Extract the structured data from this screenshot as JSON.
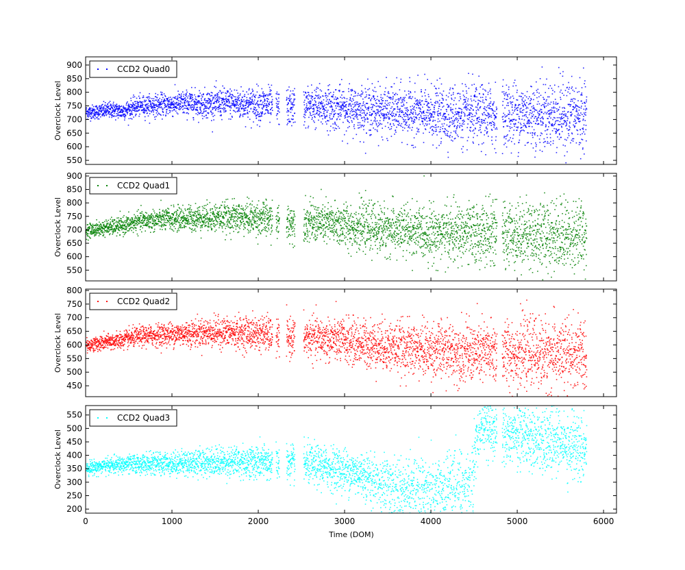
{
  "chart_data": [
    {
      "type": "scatter",
      "ylabel": "Overclock Level",
      "xlim": [
        0,
        6150
      ],
      "ylim": [
        535,
        930
      ],
      "yticks": [
        550,
        600,
        650,
        700,
        750,
        800,
        850,
        900
      ],
      "series": [
        {
          "name": "CCD2 Quad0",
          "color": "#0000ff",
          "x": [
            0,
            100,
            200,
            300,
            400,
            500,
            600,
            700,
            800,
            900,
            1000,
            1200,
            1400,
            1600,
            1800,
            2000,
            2100,
            2200,
            2350,
            2500,
            2700,
            2900,
            3100,
            3300,
            3500,
            3700,
            3900,
            4100,
            4300,
            4500,
            4700,
            4850,
            5000,
            5200,
            5400,
            5600,
            5800
          ],
          "y": [
            728,
            730,
            733,
            738,
            732,
            740,
            750,
            752,
            754,
            756,
            758,
            762,
            760,
            762,
            760,
            758,
            757,
            745,
            745,
            752,
            748,
            745,
            740,
            738,
            732,
            728,
            722,
            720,
            718,
            716,
            718,
            718,
            722,
            720,
            718,
            718,
            715
          ]
        }
      ]
    },
    {
      "type": "scatter",
      "ylabel": "Overclock Level",
      "xlim": [
        0,
        6150
      ],
      "ylim": [
        510,
        910
      ],
      "yticks": [
        550,
        600,
        650,
        700,
        750,
        800,
        850,
        900
      ],
      "series": [
        {
          "name": "CCD2 Quad1",
          "color": "#008000",
          "x": [
            0,
            100,
            200,
            300,
            400,
            500,
            600,
            700,
            800,
            900,
            1000,
            1200,
            1400,
            1600,
            1800,
            2000,
            2100,
            2200,
            2350,
            2500,
            2700,
            2900,
            3100,
            3300,
            3500,
            3700,
            3900,
            4100,
            4300,
            4500,
            4700,
            4850,
            5000,
            5200,
            5400,
            5600,
            5800
          ],
          "y": [
            700,
            702,
            708,
            712,
            715,
            722,
            732,
            735,
            738,
            740,
            742,
            745,
            748,
            748,
            748,
            745,
            742,
            730,
            730,
            732,
            728,
            722,
            715,
            710,
            702,
            698,
            692,
            690,
            688,
            686,
            690,
            685,
            688,
            686,
            684,
            682,
            680
          ]
        }
      ]
    },
    {
      "type": "scatter",
      "ylabel": "Overclock Level",
      "xlim": [
        0,
        6150
      ],
      "ylim": [
        410,
        805
      ],
      "yticks": [
        450,
        500,
        550,
        600,
        650,
        700,
        750,
        800
      ],
      "series": [
        {
          "name": "CCD2 Quad2",
          "color": "#ff0000",
          "x": [
            0,
            100,
            200,
            300,
            400,
            500,
            600,
            700,
            800,
            900,
            1000,
            1200,
            1400,
            1600,
            1800,
            2000,
            2100,
            2200,
            2350,
            2500,
            2700,
            2900,
            3100,
            3300,
            3500,
            3700,
            3900,
            4100,
            4300,
            4500,
            4700,
            4850,
            5000,
            5200,
            5400,
            5600,
            5800
          ],
          "y": [
            600,
            605,
            610,
            615,
            618,
            625,
            632,
            635,
            638,
            640,
            642,
            645,
            648,
            648,
            646,
            644,
            642,
            628,
            628,
            630,
            625,
            620,
            612,
            605,
            598,
            590,
            585,
            582,
            578,
            572,
            575,
            572,
            576,
            572,
            568,
            565,
            562
          ]
        }
      ]
    },
    {
      "type": "scatter",
      "ylabel": "Overclock Level",
      "xlabel": "Time (DOM)",
      "xlim": [
        0,
        6150
      ],
      "ylim": [
        185,
        585
      ],
      "yticks": [
        200,
        250,
        300,
        350,
        400,
        450,
        500,
        550
      ],
      "xticks": [
        0,
        1000,
        2000,
        3000,
        4000,
        5000,
        6000
      ],
      "series": [
        {
          "name": "CCD2 Quad3",
          "color": "#00ffff",
          "x": [
            0,
            100,
            200,
            300,
            400,
            500,
            600,
            700,
            800,
            900,
            1000,
            1200,
            1400,
            1600,
            1800,
            2000,
            2100,
            2200,
            2350,
            2500,
            2700,
            2900,
            3100,
            3300,
            3500,
            3700,
            3900,
            4100,
            4300,
            4450,
            4550,
            4650,
            4750,
            4850,
            5000,
            5200,
            5400,
            5600,
            5800
          ],
          "y": [
            355,
            358,
            362,
            365,
            366,
            368,
            370,
            370,
            370,
            372,
            372,
            375,
            378,
            378,
            378,
            376,
            375,
            372,
            372,
            368,
            362,
            352,
            338,
            325,
            310,
            300,
            295,
            292,
            305,
            320,
            520,
            510,
            500,
            490,
            480,
            470,
            455,
            445,
            440
          ]
        }
      ]
    }
  ]
}
